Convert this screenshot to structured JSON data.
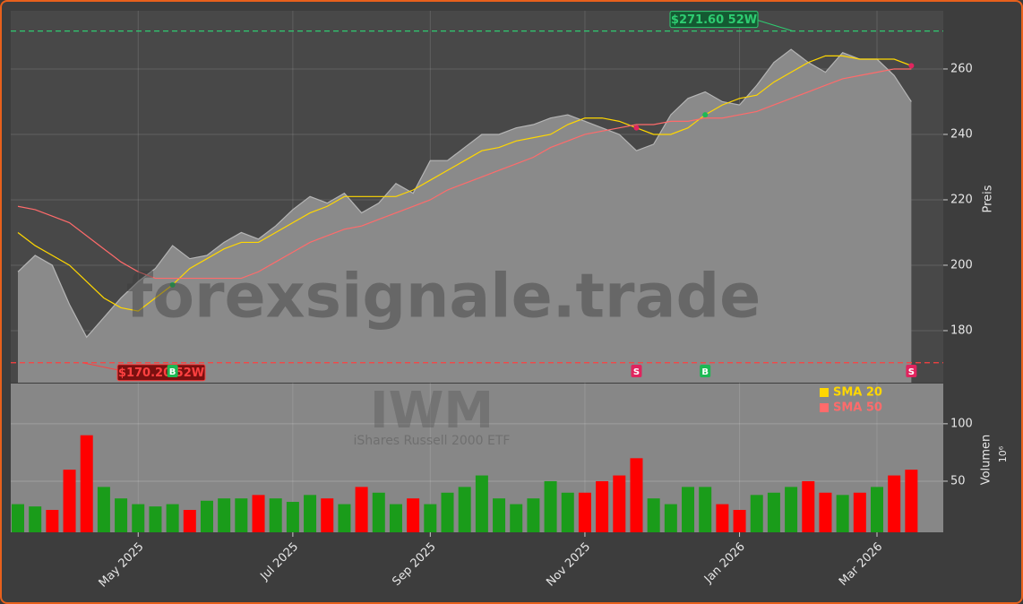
{
  "chart_data": {
    "type": "area",
    "title": "IWM",
    "subtitle": "iShares Russell 2000 ETF",
    "watermark": "forexsignale.trade",
    "ylabel": "Preis",
    "ylim": [
      164.1,
      277.8
    ],
    "yticks": [
      180,
      200,
      220,
      240,
      260
    ],
    "grid": true,
    "color": "#8a8a8a",
    "line_color": "#b5b5b5",
    "categories": [
      null,
      null,
      null,
      null,
      null,
      null,
      null,
      "May 2025",
      null,
      null,
      null,
      null,
      null,
      null,
      null,
      null,
      "Jul 2025",
      null,
      null,
      null,
      null,
      null,
      null,
      null,
      "Sep 2025",
      null,
      null,
      null,
      null,
      null,
      null,
      null,
      null,
      "Nov 2025",
      null,
      null,
      null,
      null,
      null,
      null,
      null,
      null,
      "Jan 2026",
      null,
      null,
      null,
      null,
      null,
      null,
      null,
      "Mar 2026",
      null,
      null
    ],
    "values": [
      198,
      203,
      200,
      188,
      178,
      184,
      190,
      195,
      199,
      206,
      202,
      203,
      207,
      210,
      208,
      212,
      217,
      221,
      219,
      222,
      216,
      219,
      225,
      222,
      232,
      232,
      236,
      240,
      240,
      242,
      243,
      245,
      246,
      244,
      242,
      240,
      235,
      237,
      246,
      251,
      253,
      250,
      249,
      255,
      262,
      266,
      262,
      259,
      265,
      263,
      263,
      258,
      250
    ],
    "series": [
      {
        "name": "SMA 20",
        "color": "#ffd700",
        "values": [
          210,
          206,
          203,
          200,
          195,
          190,
          187,
          186,
          190,
          194,
          199,
          202,
          205,
          207,
          207,
          210,
          213,
          216,
          218,
          221,
          221,
          221,
          221,
          223,
          226,
          229,
          232,
          235,
          236,
          238,
          239,
          240,
          243,
          245,
          245,
          244,
          242,
          240,
          240,
          242,
          246,
          249,
          251,
          252,
          256,
          259,
          262,
          264,
          264,
          263,
          263,
          263,
          261
        ]
      },
      {
        "name": "SMA 50",
        "color": "#ff6b6b",
        "values": [
          218,
          217,
          215,
          213,
          209,
          205,
          201,
          198,
          196,
          196,
          196,
          196,
          196,
          196,
          198,
          201,
          204,
          207,
          209,
          211,
          212,
          214,
          216,
          218,
          220,
          223,
          225,
          227,
          229,
          231,
          233,
          236,
          238,
          240,
          241,
          242,
          243,
          243,
          244,
          244,
          245,
          245,
          246,
          247,
          249,
          251,
          253,
          255,
          257,
          258,
          259,
          260,
          260
        ]
      }
    ],
    "signals": [
      null,
      null,
      null,
      null,
      null,
      null,
      null,
      null,
      null,
      "B",
      null,
      null,
      null,
      null,
      null,
      null,
      null,
      null,
      null,
      null,
      null,
      null,
      null,
      null,
      null,
      null,
      null,
      null,
      null,
      null,
      null,
      null,
      null,
      null,
      null,
      null,
      "S",
      null,
      null,
      null,
      "B",
      null,
      null,
      null,
      null,
      null,
      null,
      null,
      null,
      null,
      null,
      null,
      "S"
    ],
    "buy_color": "#1db954",
    "sell_color": "#e0245e",
    "high_52w": 271.6,
    "high_label": "$271.60 52W",
    "low_52w": 170.2,
    "low_label": "$170.20 52W",
    "volume": {
      "type": "bar",
      "ylabel": "Volumen",
      "scale_label": "10⁶",
      "ylim": [
        5.5,
        135
      ],
      "yticks": [
        50,
        100
      ],
      "up_color": "#1a9c1a",
      "down_color": "#ff0000",
      "values": [
        30,
        28,
        25,
        60,
        90,
        45,
        35,
        30,
        28,
        30,
        25,
        33,
        35,
        35,
        38,
        35,
        32,
        38,
        35,
        30,
        45,
        40,
        30,
        35,
        30,
        40,
        45,
        55,
        35,
        30,
        35,
        50,
        40,
        40,
        50,
        55,
        70,
        35,
        30,
        45,
        45,
        30,
        25,
        38,
        40,
        45,
        50,
        40,
        38,
        40,
        45,
        55,
        60
      ]
    }
  }
}
